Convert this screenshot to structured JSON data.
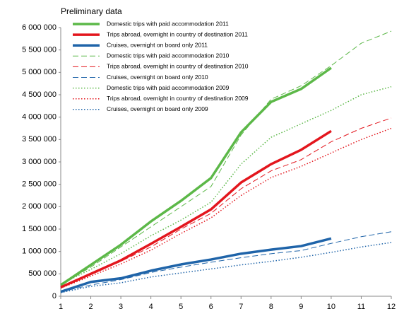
{
  "chart_data": {
    "type": "line",
    "annotation": "Preliminary data",
    "x": [
      1,
      2,
      3,
      4,
      5,
      6,
      7,
      8,
      9,
      10,
      11,
      12
    ],
    "xlim": [
      1,
      12
    ],
    "xticks": [
      1,
      2,
      3,
      4,
      5,
      6,
      7,
      8,
      9,
      10,
      11,
      12
    ],
    "ylim": [
      0,
      6000000
    ],
    "yticks": [
      0,
      {
        "value": 500000,
        "label": "500 000"
      },
      {
        "value": 1000000,
        "label": "1 000 000"
      },
      {
        "value": 1500000,
        "label": "1 500 000"
      },
      {
        "value": 2000000,
        "label": "2 000 000"
      },
      {
        "value": 2500000,
        "label": "2 500 000"
      },
      {
        "value": 3000000,
        "label": "3 000 000"
      },
      {
        "value": 3500000,
        "label": "3 500 000"
      },
      {
        "value": 4000000,
        "label": "4 000 000"
      },
      {
        "value": 4500000,
        "label": "4 500 000"
      },
      {
        "value": 5000000,
        "label": "5 000 000"
      },
      {
        "value": 5500000,
        "label": "5 500 000"
      },
      {
        "value": 6000000,
        "label": "6 000 000"
      }
    ],
    "grid": false,
    "legend": "top-left",
    "series": [
      {
        "name": "Domestic trips with paid accommodation 2011",
        "color": "#5cb848",
        "dash": "solid",
        "width": 3.5,
        "values": [
          250000,
          700000,
          1150000,
          1670000,
          2130000,
          2640000,
          3660000,
          4340000,
          4630000,
          5100000,
          null,
          null
        ]
      },
      {
        "name": "Trips abroad, overnight in country of destination 2011",
        "color": "#e3161d",
        "dash": "solid",
        "width": 3.5,
        "values": [
          200000,
          500000,
          800000,
          1170000,
          1550000,
          1940000,
          2540000,
          2950000,
          3270000,
          3690000,
          null,
          null
        ]
      },
      {
        "name": "Cruises, overnight on board only 2011",
        "color": "#1f64a9",
        "dash": "solid",
        "width": 3.5,
        "values": [
          100000,
          320000,
          400000,
          570000,
          710000,
          820000,
          950000,
          1040000,
          1120000,
          1290000,
          null,
          null
        ]
      },
      {
        "name": "Domestic trips with paid accommodation 2010",
        "color": "#5cb848",
        "dash": "dashed",
        "width": 1,
        "values": [
          250000,
          650000,
          1100000,
          1550000,
          2000000,
          2450000,
          3600000,
          4400000,
          4700000,
          5150000,
          5650000,
          5920000
        ]
      },
      {
        "name": "Trips abroad, overnight in country of destination 2010",
        "color": "#e3161d",
        "dash": "dashed",
        "width": 1,
        "values": [
          200000,
          480000,
          780000,
          1100000,
          1500000,
          1850000,
          2400000,
          2800000,
          3050000,
          3450000,
          3750000,
          3980000
        ]
      },
      {
        "name": "Cruises, overnight on board only 2010",
        "color": "#1f64a9",
        "dash": "dashed",
        "width": 1,
        "values": [
          100000,
          250000,
          370000,
          530000,
          650000,
          760000,
          860000,
          950000,
          1020000,
          1180000,
          1330000,
          1440000
        ]
      },
      {
        "name": "Domestic trips with paid accommodation 2009",
        "color": "#5cb848",
        "dash": "dotted",
        "width": 1.5,
        "values": [
          270000,
          600000,
          950000,
          1350000,
          1700000,
          2100000,
          2950000,
          3550000,
          3850000,
          4150000,
          4500000,
          4680000
        ]
      },
      {
        "name": "Trips abroad, overnight in country of destination 2009",
        "color": "#e3161d",
        "dash": "dotted",
        "width": 1.5,
        "values": [
          180000,
          450000,
          720000,
          1030000,
          1400000,
          1750000,
          2250000,
          2650000,
          2900000,
          3200000,
          3500000,
          3750000
        ]
      },
      {
        "name": "Cruises, overnight on board only 2009",
        "color": "#1f64a9",
        "dash": "dotted",
        "width": 1.5,
        "values": [
          80000,
          220000,
          300000,
          430000,
          520000,
          610000,
          700000,
          780000,
          870000,
          980000,
          1100000,
          1200000
        ]
      }
    ]
  }
}
